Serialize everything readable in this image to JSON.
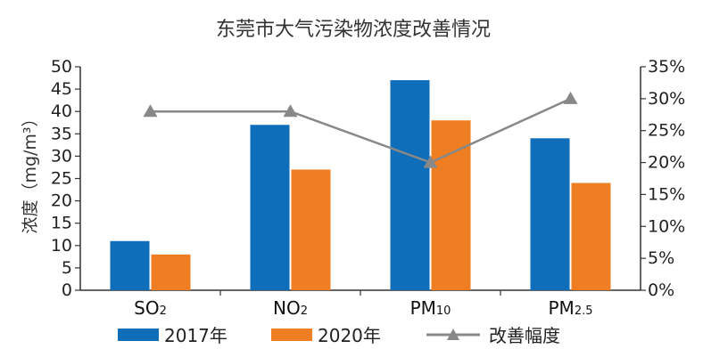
{
  "chart_data": {
    "type": "bar",
    "title": "东莞市大气污染物浓度改善情况",
    "ylabel": "浓度（mg/m³）",
    "categories": [
      {
        "base": "SO",
        "sub": "2"
      },
      {
        "base": "NO",
        "sub": "2"
      },
      {
        "base": "PM",
        "sub": "10"
      },
      {
        "base": "PM",
        "sub": "2.5"
      }
    ],
    "series": [
      {
        "name": "2017年",
        "color": "#0f6eb9",
        "values": [
          11,
          37,
          47,
          34
        ]
      },
      {
        "name": "2020年",
        "color": "#ef7d22",
        "values": [
          8,
          27,
          38,
          24
        ]
      }
    ],
    "line_series": {
      "name": "改善幅度",
      "color": "#888888",
      "values": [
        0.28,
        0.28,
        0.2,
        0.3
      ]
    },
    "ylim": [
      0,
      50
    ],
    "y2lim": [
      0,
      0.35
    ],
    "yticks": [
      "0",
      "5",
      "10",
      "15",
      "20",
      "25",
      "30",
      "35",
      "40",
      "45",
      "50"
    ],
    "y2ticks": [
      "0%",
      "5%",
      "10%",
      "15%",
      "20%",
      "25%",
      "30%",
      "35%"
    ],
    "grid": false,
    "legend_position": "bottom"
  }
}
